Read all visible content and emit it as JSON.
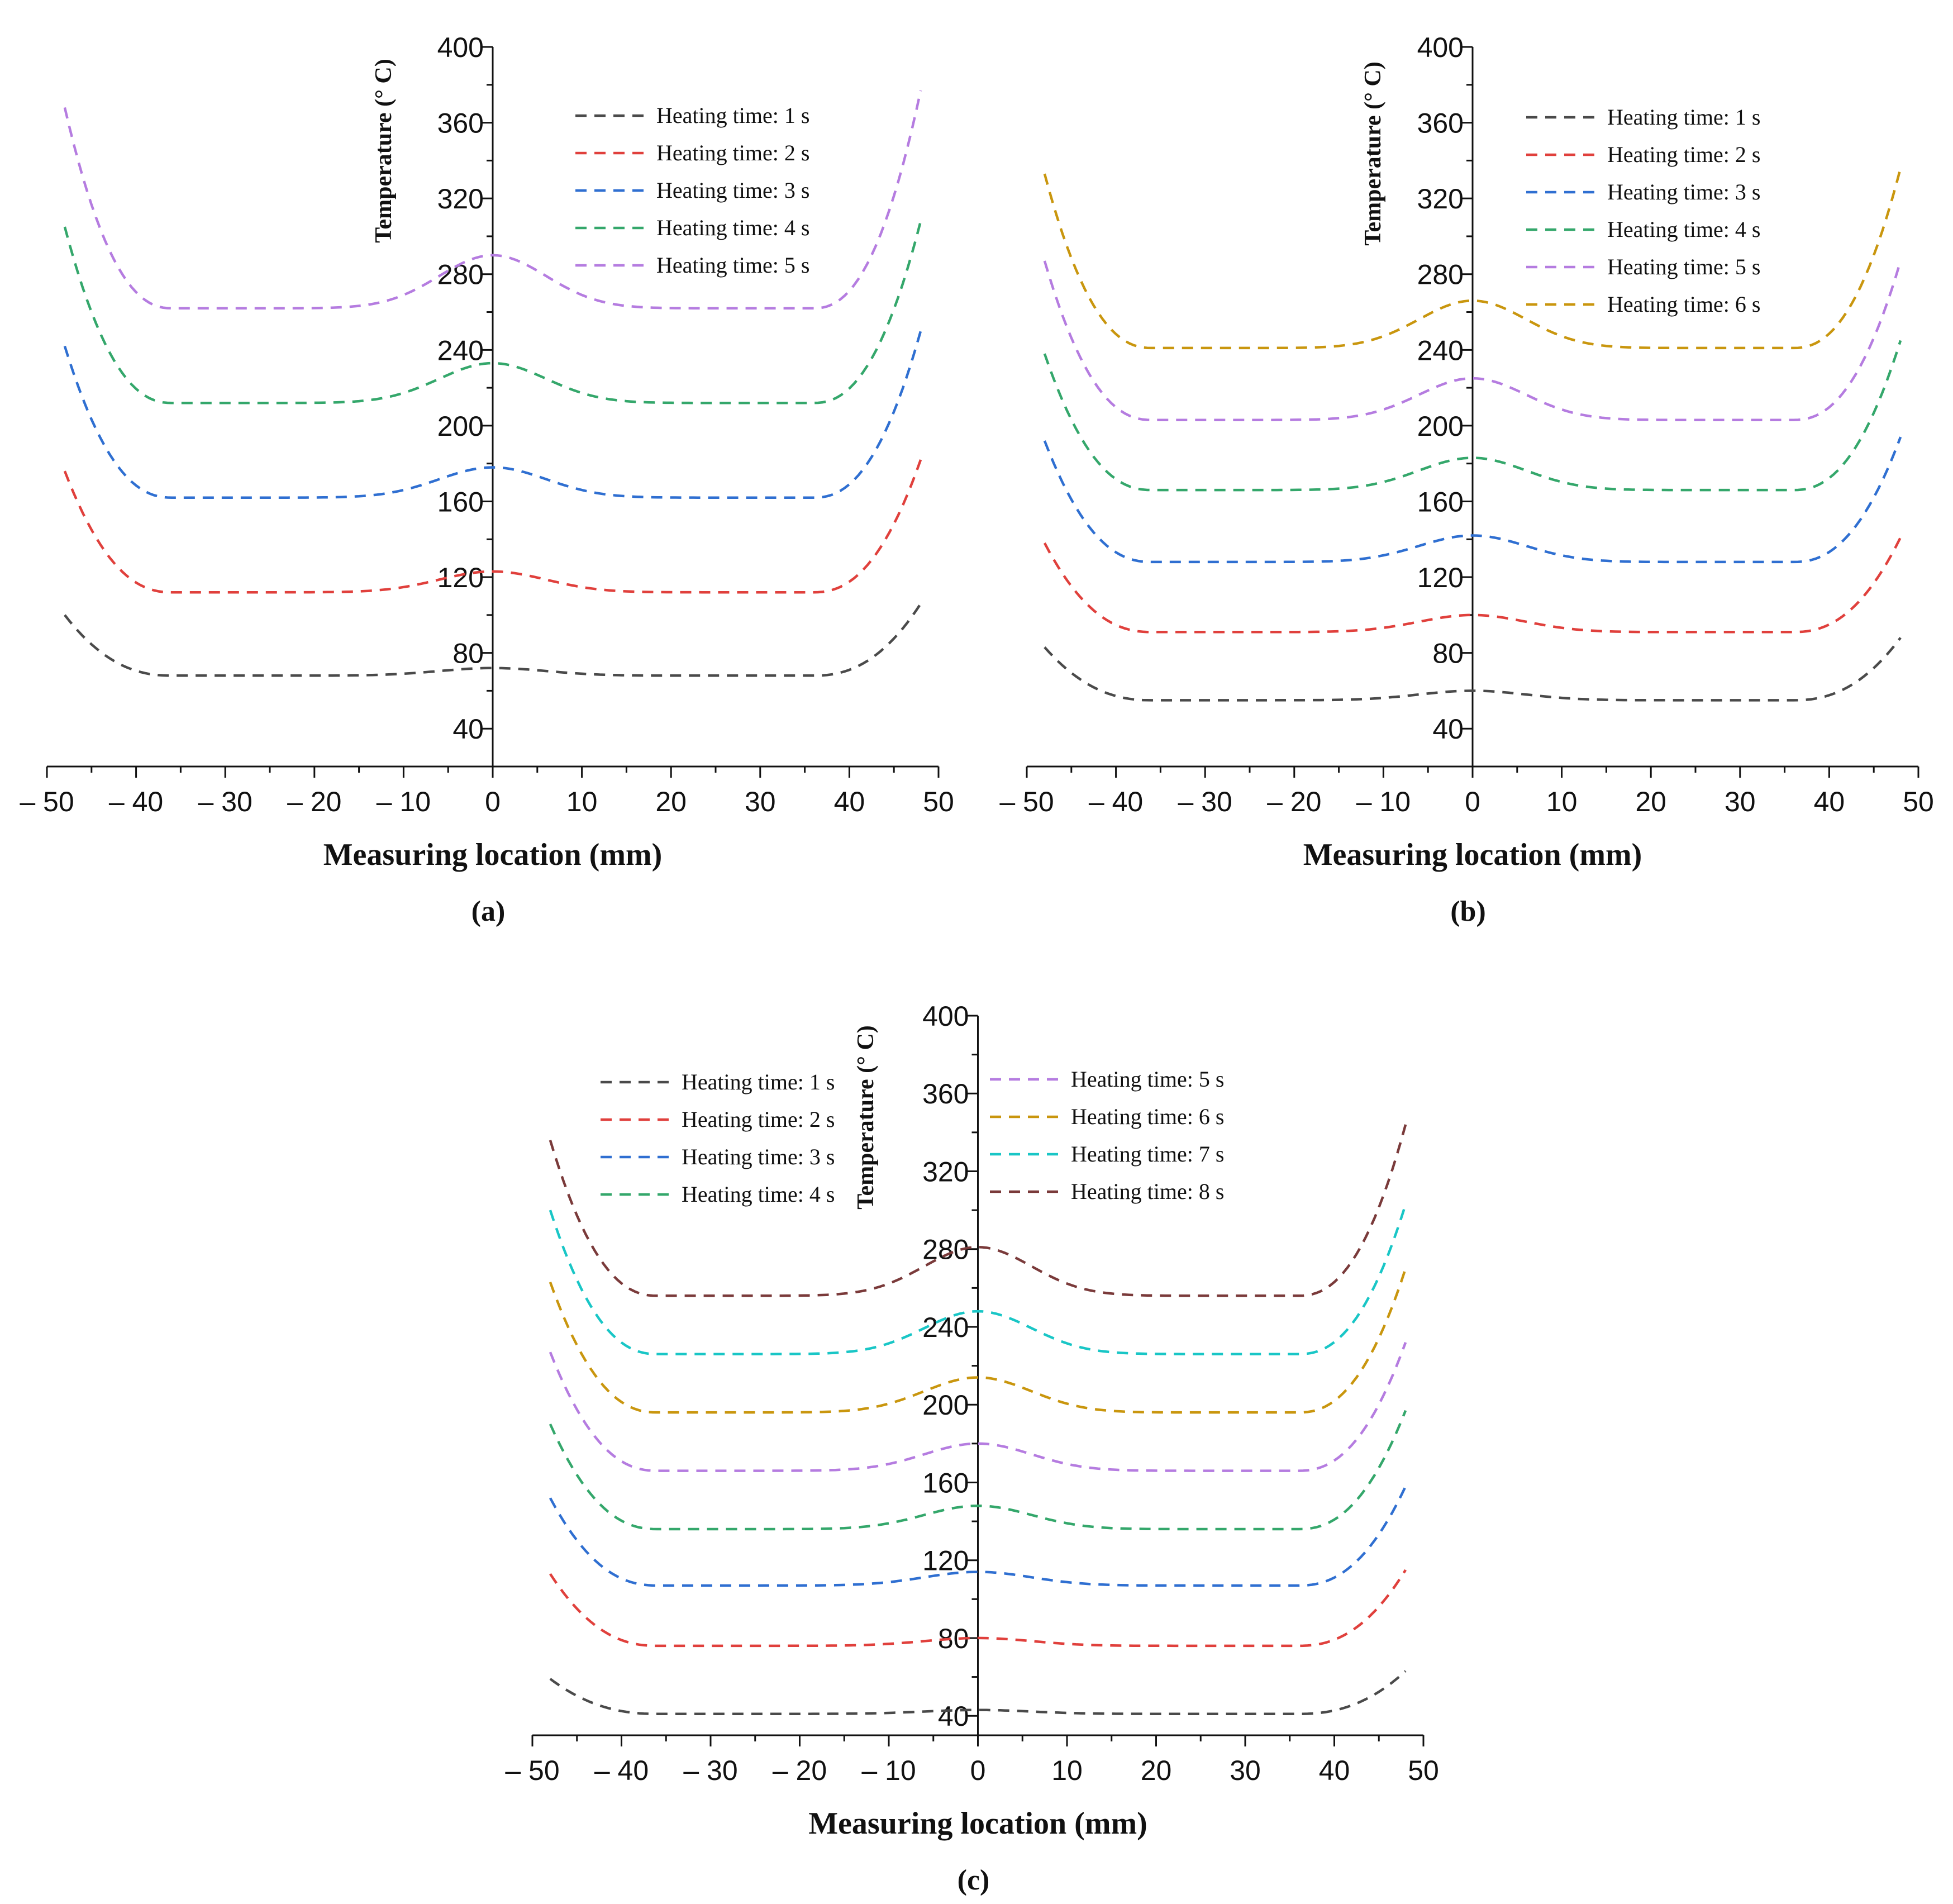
{
  "colors": {
    "1": "#4a4a4a",
    "2": "#e0403c",
    "3": "#2f6fd1",
    "4": "#34a76b",
    "5": "#b57ce0",
    "6": "#c9960e",
    "7": "#19c6c6",
    "8": "#7a3a3a"
  },
  "chart_data": [
    {
      "type": "line",
      "panel_label": "(a)",
      "xlabel": "Measuring location (mm)",
      "ylabel": "Temperature (° C)",
      "xlim": [
        -50,
        50
      ],
      "ylim": [
        20,
        400
      ],
      "x_ticks": [
        -50,
        -40,
        -30,
        -20,
        -10,
        0,
        10,
        20,
        30,
        40,
        50
      ],
      "x_tick_labels": [
        "– 50",
        "– 40",
        "– 30",
        "– 20",
        "– 10",
        "0",
        "10",
        "20",
        "30",
        "40",
        "50"
      ],
      "y_ticks": [
        40,
        80,
        120,
        160,
        200,
        240,
        280,
        320,
        360,
        400
      ],
      "y_tick_labels": [
        "40",
        "80",
        "120",
        "160",
        "200",
        "240",
        "280",
        "320",
        "360",
        "400"
      ],
      "legend_columns": 1,
      "series": [
        {
          "name": "Heating time: 1 s",
          "color_key": "1",
          "edge": 100,
          "base": 68,
          "center": 72,
          "right_edge": 106
        },
        {
          "name": "Heating time: 2 s",
          "color_key": "2",
          "edge": 176,
          "base": 112,
          "center": 123,
          "right_edge": 182
        },
        {
          "name": "Heating time: 3 s",
          "color_key": "3",
          "edge": 242,
          "base": 162,
          "center": 178,
          "right_edge": 250
        },
        {
          "name": "Heating time: 4 s",
          "color_key": "4",
          "edge": 305,
          "base": 212,
          "center": 233,
          "right_edge": 308
        },
        {
          "name": "Heating time: 5 s",
          "color_key": "5",
          "edge": 368,
          "base": 262,
          "center": 290,
          "right_edge": 377
        }
      ]
    },
    {
      "type": "line",
      "panel_label": "(b)",
      "xlabel": "Measuring location (mm)",
      "ylabel": "Temperature (° C)",
      "xlim": [
        -50,
        50
      ],
      "ylim": [
        20,
        400
      ],
      "x_ticks": [
        -50,
        -40,
        -30,
        -20,
        -10,
        0,
        10,
        20,
        30,
        40,
        50
      ],
      "x_tick_labels": [
        "– 50",
        "– 40",
        "– 30",
        "– 20",
        "– 10",
        "0",
        "10",
        "20",
        "30",
        "40",
        "50"
      ],
      "y_ticks": [
        40,
        80,
        120,
        160,
        200,
        240,
        280,
        320,
        360,
        400
      ],
      "y_tick_labels": [
        "40",
        "80",
        "120",
        "160",
        "200",
        "240",
        "280",
        "320",
        "360",
        "400"
      ],
      "legend_columns": 1,
      "series": [
        {
          "name": "Heating time: 1 s",
          "color_key": "1",
          "edge": 83,
          "base": 55,
          "center": 60,
          "right_edge": 88
        },
        {
          "name": "Heating time: 2 s",
          "color_key": "2",
          "edge": 138,
          "base": 91,
          "center": 100,
          "right_edge": 141
        },
        {
          "name": "Heating time: 3 s",
          "color_key": "3",
          "edge": 192,
          "base": 128,
          "center": 142,
          "right_edge": 194
        },
        {
          "name": "Heating time: 4 s",
          "color_key": "4",
          "edge": 238,
          "base": 166,
          "center": 183,
          "right_edge": 245
        },
        {
          "name": "Heating time: 5 s",
          "color_key": "5",
          "edge": 287,
          "base": 203,
          "center": 225,
          "right_edge": 287
        },
        {
          "name": "Heating time: 6 s",
          "color_key": "6",
          "edge": 333,
          "base": 241,
          "center": 266,
          "right_edge": 336
        }
      ]
    },
    {
      "type": "line",
      "panel_label": "(c)",
      "xlabel": "Measuring location (mm)",
      "ylabel": "Temperature (° C)",
      "xlim": [
        -50,
        50
      ],
      "ylim": [
        30,
        400
      ],
      "x_ticks": [
        -50,
        -40,
        -30,
        -20,
        -10,
        0,
        10,
        20,
        30,
        40,
        50
      ],
      "x_tick_labels": [
        "– 50",
        "– 40",
        "– 30",
        "– 20",
        "– 10",
        "0",
        "10",
        "20",
        "30",
        "40",
        "50"
      ],
      "y_ticks": [
        40,
        80,
        120,
        160,
        200,
        240,
        280,
        320,
        360,
        400
      ],
      "y_tick_labels": [
        "40",
        "80",
        "120",
        "160",
        "200",
        "240",
        "280",
        "320",
        "360",
        "400"
      ],
      "legend_columns": 2,
      "series": [
        {
          "name": "Heating time: 1 s",
          "color_key": "1",
          "edge": 59,
          "base": 41,
          "center": 43,
          "right_edge": 63
        },
        {
          "name": "Heating time: 2 s",
          "color_key": "2",
          "edge": 113,
          "base": 76,
          "center": 80,
          "right_edge": 115
        },
        {
          "name": "Heating time: 3 s",
          "color_key": "3",
          "edge": 152,
          "base": 107,
          "center": 114,
          "right_edge": 158
        },
        {
          "name": "Heating time: 4 s",
          "color_key": "4",
          "edge": 190,
          "base": 136,
          "center": 148,
          "right_edge": 197
        },
        {
          "name": "Heating time: 5 s",
          "color_key": "5",
          "edge": 227,
          "base": 166,
          "center": 180,
          "right_edge": 232
        },
        {
          "name": "Heating time: 6 s",
          "color_key": "6",
          "edge": 263,
          "base": 196,
          "center": 214,
          "right_edge": 270
        },
        {
          "name": "Heating time: 7 s",
          "color_key": "7",
          "edge": 300,
          "base": 226,
          "center": 248,
          "right_edge": 303
        },
        {
          "name": "Heating time: 8 s",
          "color_key": "8",
          "edge": 336,
          "base": 256,
          "center": 281,
          "right_edge": 344
        }
      ]
    }
  ]
}
